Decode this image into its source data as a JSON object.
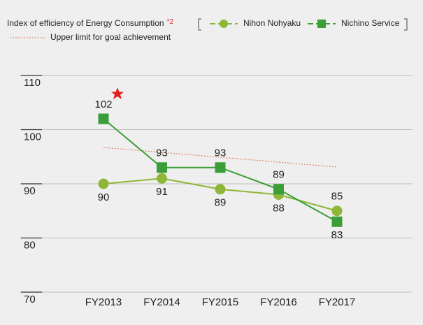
{
  "chart_data": {
    "type": "line",
    "title": "Index of efficiency of Energy Consumption",
    "title_note": "*2",
    "categories": [
      "FY2013",
      "FY2014",
      "FY2015",
      "FY2016",
      "FY2017"
    ],
    "series": [
      {
        "name": "Nihon Nohyaku",
        "color": "#8fb636",
        "marker": "circle",
        "values": [
          90,
          91,
          89,
          88,
          85
        ]
      },
      {
        "name": "Nichino Service",
        "color": "#3c9e38",
        "marker": "square",
        "values": [
          102,
          93,
          93,
          89,
          83
        ]
      },
      {
        "name": "Upper limit for goal achievement",
        "color": "#e08a72",
        "marker": "none",
        "dotted": true,
        "values": [
          96.7,
          95.8,
          94.9,
          94.0,
          93.1
        ]
      }
    ],
    "ylim": [
      70,
      110
    ],
    "yticks": [
      70,
      80,
      90,
      100,
      110
    ],
    "grid": true
  }
}
